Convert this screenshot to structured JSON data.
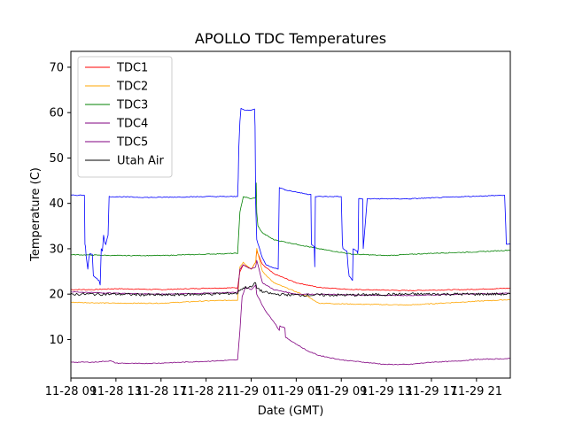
{
  "chart_data": {
    "type": "line",
    "title": "APOLLO TDC Temperatures",
    "xlabel": "Date (GMT)",
    "ylabel": "Temperature (C)",
    "xlim": [
      0,
      39
    ],
    "ylim": [
      1.5,
      73.5
    ],
    "yticks": [
      10,
      20,
      30,
      40,
      50,
      60,
      70
    ],
    "xticks": [
      {
        "value": 0,
        "label": "11-28 09"
      },
      {
        "value": 4,
        "label": "11-28 13"
      },
      {
        "value": 8,
        "label": "11-28 17"
      },
      {
        "value": 12,
        "label": "11-28 21"
      },
      {
        "value": 16,
        "label": "11-29 01"
      },
      {
        "value": 20,
        "label": "11-29 05"
      },
      {
        "value": 24,
        "label": "11-29 09"
      },
      {
        "value": 28,
        "label": "11-29 13"
      },
      {
        "value": 32,
        "label": "11-29 17"
      },
      {
        "value": 36,
        "label": "11-29 21"
      }
    ],
    "legend_position": "top-left",
    "series": [
      {
        "name": "TDC1",
        "color": "#ff0000",
        "width": 0.8,
        "x": [
          0,
          2,
          4,
          8,
          12,
          14.8,
          15.0,
          15.3,
          16.0,
          16.4,
          16.5,
          17,
          18,
          20,
          22,
          25,
          30,
          35,
          39
        ],
        "y": [
          21.0,
          21.0,
          21.2,
          21.0,
          21.3,
          21.4,
          25.0,
          26.5,
          25.5,
          27.0,
          29.5,
          26.5,
          24.5,
          22.5,
          21.5,
          21.0,
          20.8,
          21.0,
          21.3
        ]
      },
      {
        "name": "TDC2",
        "color": "#ffa500",
        "width": 0.8,
        "x": [
          0,
          4,
          8,
          12,
          14.8,
          15.0,
          15.3,
          16.0,
          16.4,
          16.5,
          17,
          18,
          20,
          21,
          22,
          25,
          30,
          35,
          39
        ],
        "y": [
          18.2,
          18.0,
          18.0,
          18.5,
          18.7,
          26.0,
          27.0,
          25.5,
          27.0,
          30.0,
          25.0,
          22.5,
          20.5,
          19.5,
          18.0,
          17.8,
          17.6,
          18.3,
          18.8
        ]
      },
      {
        "name": "TDC3",
        "color": "#008000",
        "width": 0.8,
        "x": [
          0,
          4,
          8,
          12,
          14.8,
          15.0,
          15.3,
          16.0,
          16.4,
          16.45,
          16.5,
          16.6,
          17,
          18,
          20,
          22,
          25,
          28,
          32,
          36,
          39
        ],
        "y": [
          28.7,
          28.5,
          28.5,
          28.8,
          29.0,
          38.0,
          41.5,
          41.0,
          41.3,
          44.5,
          38.0,
          35.0,
          33.5,
          32.0,
          31.0,
          30.0,
          28.8,
          28.5,
          29.0,
          29.3,
          29.7
        ]
      },
      {
        "name": "TDC4",
        "color": "#800080",
        "width": 0.8,
        "x": [
          0,
          4,
          8,
          12,
          14.8,
          15.0,
          15.3,
          16.0,
          16.4,
          16.5,
          17,
          18,
          20,
          22,
          25,
          30,
          35,
          39
        ],
        "y": [
          20.5,
          20.2,
          20.0,
          20.2,
          20.4,
          25.5,
          26.5,
          25.5,
          26.0,
          27.5,
          22.5,
          21.0,
          20.0,
          20.0,
          19.8,
          19.7,
          20.0,
          20.2
        ]
      },
      {
        "name": "TDC5",
        "color": "#800080",
        "width": 0.8,
        "x": [
          0,
          2,
          3,
          3.5,
          4,
          6,
          8,
          10,
          12,
          14.8,
          15.0,
          15.2,
          15.5,
          16.0,
          16.4,
          16.5,
          17.0,
          17.5,
          18.0,
          18.5,
          18.55,
          19.0,
          19.05,
          20.0,
          21.0,
          22.0,
          24.0,
          26.0,
          28.0,
          30.0,
          32.0,
          34.0,
          36.0,
          39.0
        ],
        "y": [
          5.0,
          5.0,
          5.2,
          5.3,
          4.8,
          4.7,
          4.8,
          5.0,
          5.2,
          5.5,
          12.0,
          19.5,
          21.5,
          21.0,
          22.0,
          20.0,
          17.5,
          15.5,
          14.0,
          12.0,
          13.0,
          12.5,
          10.5,
          9.0,
          7.5,
          6.5,
          5.5,
          5.0,
          4.5,
          4.5,
          5.0,
          5.2,
          5.6,
          5.8
        ]
      },
      {
        "name": "Utah Air",
        "color": "#000000",
        "width": 0.8,
        "noise": 0.6,
        "x": [
          0,
          4,
          8,
          12,
          14.8,
          15.0,
          15.5,
          16.0,
          16.4,
          16.5,
          17,
          18,
          20,
          25,
          30,
          35,
          39
        ],
        "y": [
          20.0,
          20.0,
          19.8,
          20.0,
          20.2,
          21.0,
          21.5,
          21.5,
          22.5,
          21.5,
          20.5,
          20.0,
          19.8,
          19.8,
          20.0,
          20.0,
          20.0
        ]
      },
      {
        "name": "",
        "color": "#0000ff",
        "width": 0.8,
        "legend": false,
        "x": [
          0,
          1.2,
          1.25,
          1.3,
          1.35,
          1.5,
          1.6,
          1.7,
          1.9,
          2.0,
          2.5,
          2.6,
          2.7,
          2.8,
          2.9,
          3.0,
          3.1,
          3.3,
          3.4,
          7,
          12,
          14.8,
          14.85,
          14.9,
          15.0,
          15.1,
          15.5,
          16.0,
          16.3,
          16.35,
          16.4,
          16.5,
          17.0,
          17.3,
          17.8,
          18.4,
          18.5,
          19.0,
          20.0,
          21.0,
          21.3,
          21.35,
          21.6,
          21.65,
          21.7,
          24.0,
          24.1,
          24.15,
          24.5,
          24.6,
          24.7,
          25.0,
          25.05,
          25.4,
          25.45,
          25.5,
          25.55,
          25.9,
          25.95,
          26.3,
          30,
          35,
          38.5,
          38.6,
          38.65,
          39
        ],
        "y": [
          41.8,
          41.8,
          31.0,
          30.5,
          28.5,
          25.5,
          28.0,
          29.0,
          28.8,
          24.0,
          23.0,
          22.0,
          30.0,
          29.5,
          33.0,
          31.5,
          31.0,
          33.0,
          41.5,
          41.3,
          41.5,
          41.5,
          45.5,
          52.0,
          58.0,
          61.0,
          60.5,
          60.5,
          60.8,
          57.0,
          40.0,
          32.0,
          28.0,
          26.5,
          26.0,
          25.5,
          43.5,
          43.0,
          42.5,
          42.0,
          42.0,
          31.0,
          30.5,
          26.0,
          41.5,
          41.5,
          31.0,
          30.0,
          29.5,
          26.0,
          24.0,
          23.0,
          30.0,
          29.5,
          29.0,
          30.0,
          41.0,
          41.0,
          30.0,
          41.0,
          41.0,
          41.5,
          41.8,
          35.0,
          31.0,
          31.0
        ]
      }
    ]
  }
}
